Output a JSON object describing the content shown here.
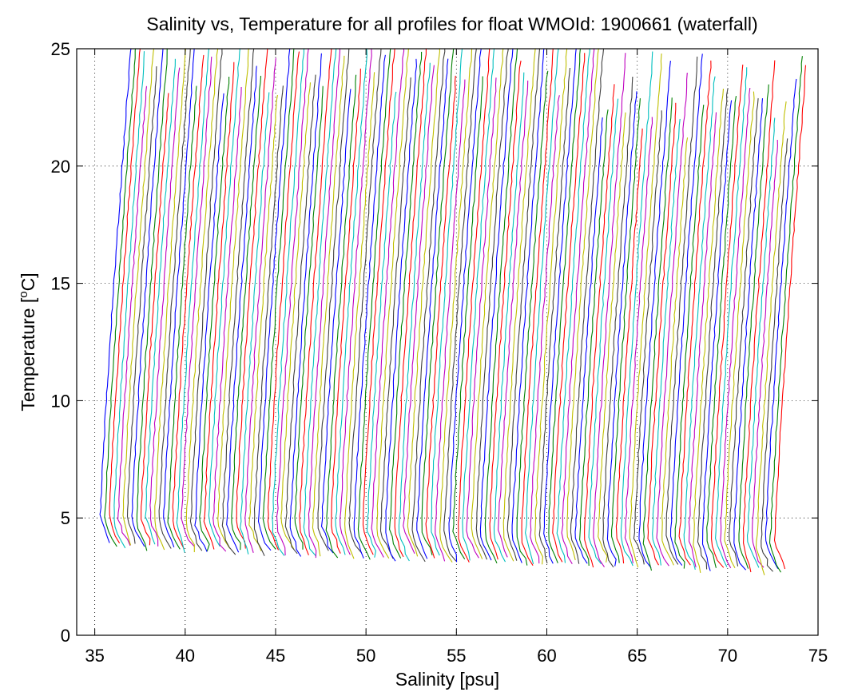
{
  "chart_data": {
    "type": "line",
    "title": "Salinity vs, Temperature for all profiles for float WMOId: 1900661 (waterfall)",
    "xlabel": "Salinity [psu]",
    "ylabel_main": "Temperature [",
    "ylabel_sup": "o",
    "ylabel_end": "C]",
    "xlim": [
      34,
      75
    ],
    "ylim": [
      0,
      25
    ],
    "xticks": [
      35,
      40,
      45,
      50,
      55,
      60,
      65,
      70,
      75
    ],
    "yticks": [
      0,
      5,
      10,
      15,
      20,
      25
    ],
    "grid": true,
    "grid_style": "dotted",
    "palette": [
      "#0000ff",
      "#008000",
      "#ff0000",
      "#00bfbf",
      "#bf00bf",
      "#bfbf00",
      "#404040"
    ],
    "waterfall": {
      "profile_count": 150,
      "first_offset": 35.3,
      "last_offset": 72.6,
      "surface_temperature_range": [
        21,
        25
      ],
      "base_temperature_start": 4.4,
      "base_temperature_end": 3.3,
      "base_salinity_spread": 0.7,
      "upper_salinity_spread": 1.7
    }
  }
}
